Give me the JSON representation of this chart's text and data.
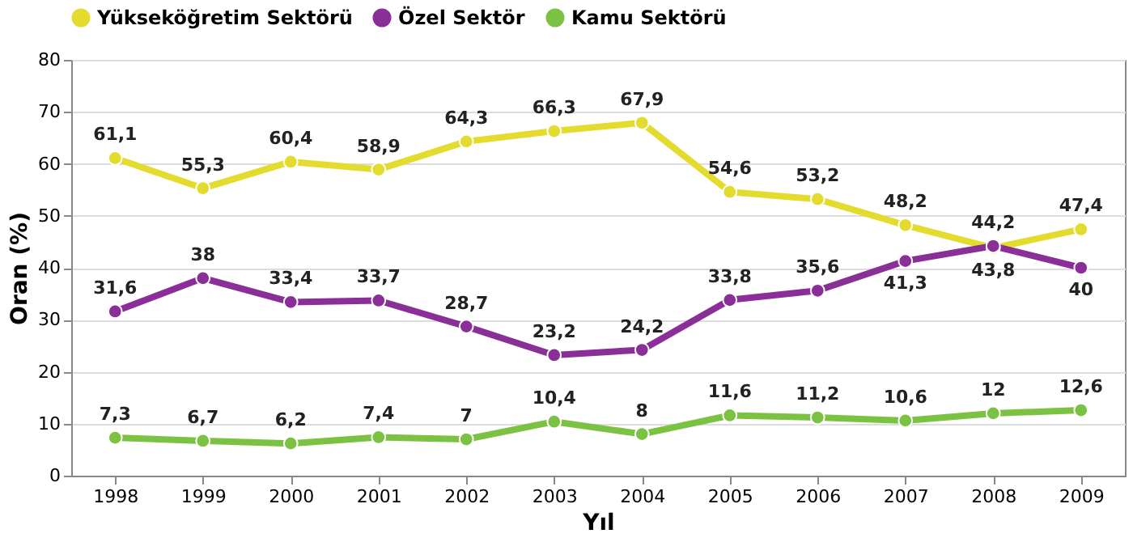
{
  "chart_data": {
    "type": "line",
    "xlabel": "Yıl",
    "ylabel": "Oran (%)",
    "categories": [
      "1998",
      "1999",
      "2000",
      "2001",
      "2002",
      "2003",
      "2004",
      "2005",
      "2006",
      "2007",
      "2008",
      "2009"
    ],
    "ylim": [
      0,
      80
    ],
    "yticks": [
      0,
      10,
      20,
      30,
      40,
      50,
      60,
      70,
      80
    ],
    "grid": "y",
    "legend": "top",
    "marker": "circle",
    "line_style": "solid",
    "series": [
      {
        "name": "Yükseköğretim Sektörü",
        "color": "#e3dc2e",
        "values": [
          61.1,
          55.3,
          60.4,
          58.9,
          64.3,
          66.3,
          67.9,
          54.6,
          53.2,
          48.2,
          43.8,
          47.4
        ],
        "value_labels": [
          "61,1",
          "55,3",
          "60,4",
          "58,9",
          "64,3",
          "66,3",
          "67,9",
          "54,6",
          "53,2",
          "48,2",
          "43,8",
          "47,4"
        ]
      },
      {
        "name": "Özel Sektör",
        "color": "#8a2f98",
        "values": [
          31.6,
          38,
          33.4,
          33.7,
          28.7,
          23.2,
          24.2,
          33.8,
          35.6,
          41.3,
          44.2,
          40
        ],
        "value_labels": [
          "31,6",
          "38",
          "33,4",
          "33,7",
          "28,7",
          "23,2",
          "24,2",
          "33,8",
          "35,6",
          "41,3",
          "44,2",
          "40"
        ]
      },
      {
        "name": "Kamu Sektörü",
        "color": "#7cc242",
        "values": [
          7.3,
          6.7,
          6.2,
          7.4,
          7,
          10.4,
          8,
          11.6,
          11.2,
          10.6,
          12,
          12.6
        ],
        "value_labels": [
          "7,3",
          "6,7",
          "6,2",
          "7,4",
          "7",
          "10,4",
          "8",
          "11,6",
          "11,2",
          "10,6",
          "12",
          "12,6"
        ]
      }
    ]
  }
}
